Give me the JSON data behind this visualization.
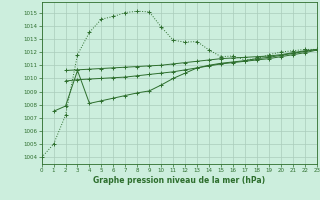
{
  "title": "Graphe pression niveau de la mer (hPa)",
  "background_color": "#cceedd",
  "grid_color": "#aaccbb",
  "line_color": "#2d6e2d",
  "xlim": [
    0,
    23
  ],
  "ylim": [
    1003.5,
    1015.8
  ],
  "xticks": [
    0,
    1,
    2,
    3,
    4,
    5,
    6,
    7,
    8,
    9,
    10,
    11,
    12,
    13,
    14,
    15,
    16,
    17,
    18,
    19,
    20,
    21,
    22,
    23
  ],
  "yticks": [
    1004,
    1005,
    1006,
    1007,
    1008,
    1009,
    1010,
    1011,
    1012,
    1013,
    1014,
    1015
  ],
  "series1_x": [
    0,
    1,
    2,
    3,
    4,
    5,
    6,
    7,
    8,
    9,
    10,
    11,
    12,
    13,
    14,
    15,
    16,
    17,
    18,
    19,
    20,
    21,
    22,
    23
  ],
  "series1_y": [
    1004.0,
    1005.0,
    1007.2,
    1011.8,
    1013.5,
    1014.5,
    1014.7,
    1015.0,
    1015.1,
    1015.05,
    1013.9,
    1012.9,
    1012.75,
    1012.8,
    1012.15,
    1011.65,
    1011.7,
    1011.4,
    1011.5,
    1011.8,
    1012.0,
    1012.1,
    1012.2,
    1012.2
  ],
  "series2_x": [
    1,
    2,
    3,
    4,
    5,
    6,
    7,
    8,
    9,
    10,
    11,
    12,
    13,
    14,
    15,
    16,
    17,
    18,
    19,
    20,
    21,
    22,
    23
  ],
  "series2_y": [
    1007.5,
    1007.9,
    1010.6,
    1008.1,
    1008.3,
    1008.5,
    1008.7,
    1008.9,
    1009.05,
    1009.5,
    1010.0,
    1010.4,
    1010.8,
    1011.0,
    1011.15,
    1011.25,
    1011.35,
    1011.5,
    1011.6,
    1011.75,
    1011.9,
    1012.05,
    1012.2
  ],
  "series3_x": [
    2,
    3,
    4,
    5,
    6,
    7,
    8,
    9,
    10,
    11,
    12,
    13,
    14,
    15,
    16,
    17,
    18,
    19,
    20,
    21,
    22,
    23
  ],
  "series3_y": [
    1010.6,
    1010.65,
    1010.7,
    1010.75,
    1010.8,
    1010.85,
    1010.9,
    1010.95,
    1011.0,
    1011.1,
    1011.2,
    1011.3,
    1011.4,
    1011.5,
    1011.55,
    1011.6,
    1011.65,
    1011.7,
    1011.8,
    1011.95,
    1012.1,
    1012.2
  ],
  "series4_x": [
    2,
    3,
    4,
    5,
    6,
    7,
    8,
    9,
    10,
    11,
    12,
    13,
    14,
    15,
    16,
    17,
    18,
    19,
    20,
    21,
    22,
    23
  ],
  "series4_y": [
    1009.8,
    1009.9,
    1009.95,
    1010.0,
    1010.05,
    1010.1,
    1010.2,
    1010.3,
    1010.4,
    1010.5,
    1010.65,
    1010.8,
    1010.95,
    1011.1,
    1011.2,
    1011.3,
    1011.4,
    1011.5,
    1011.65,
    1011.8,
    1011.95,
    1012.15
  ]
}
